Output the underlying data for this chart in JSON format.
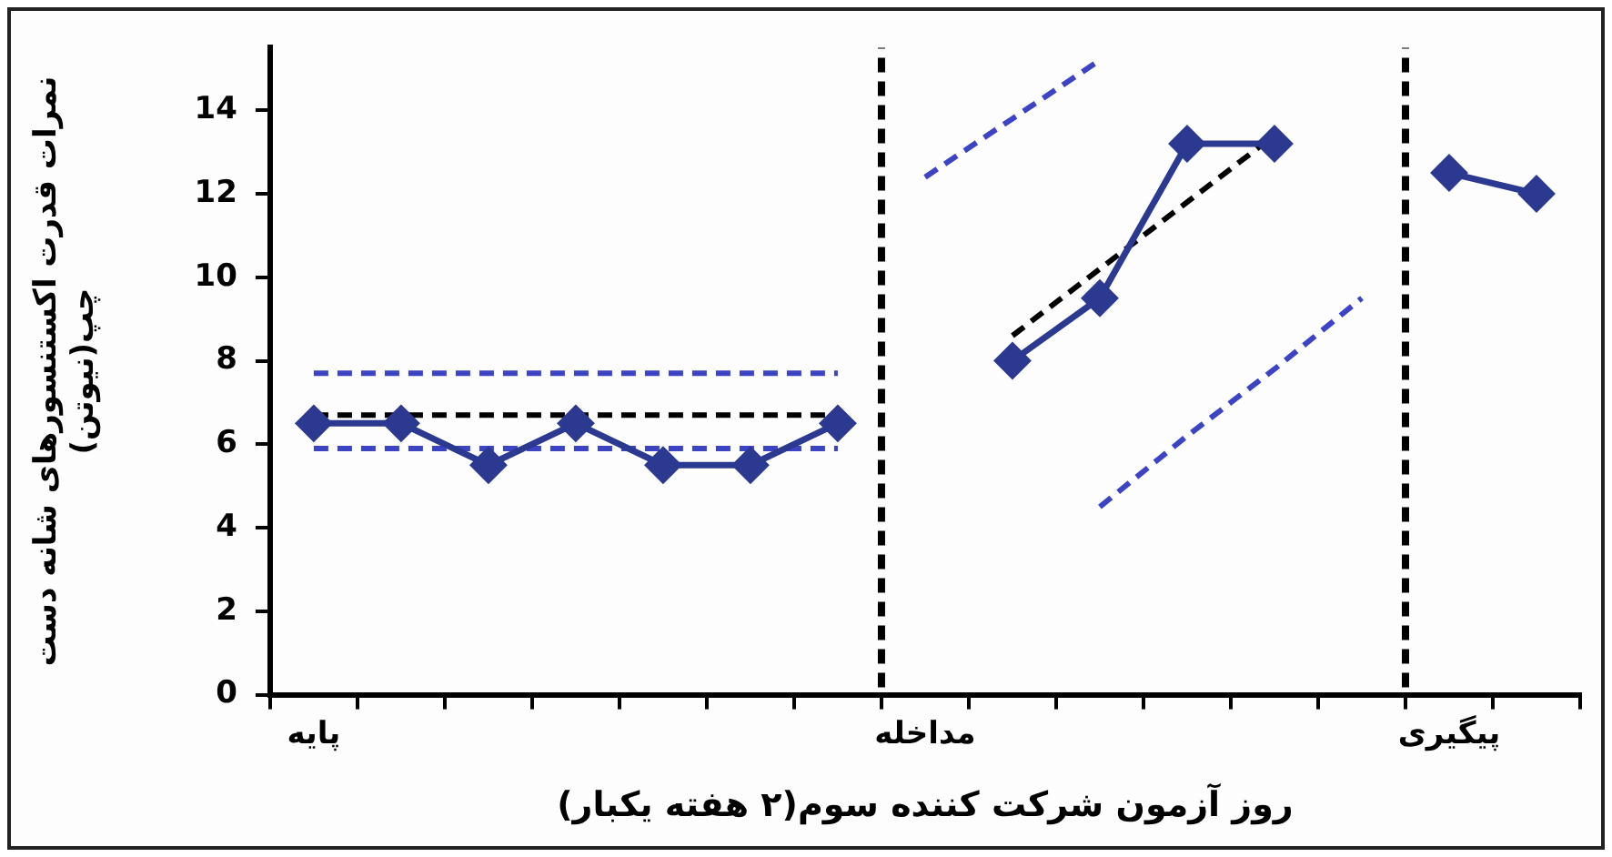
{
  "chart_data": {
    "type": "line",
    "xlabel": "روز آزمون شرکت کننده سوم(۲ هفته یکبار)",
    "ylabel": "نمرات قدرت اکستنسورهای شانه دست\nچپ(نیوتن)",
    "categories": [
      "پایه",
      null,
      null,
      null,
      null,
      null,
      null,
      "مداخله",
      null,
      null,
      null,
      null,
      null,
      "پیگیری",
      null
    ],
    "ylim": [
      0,
      15.5
    ],
    "yticks": [
      0,
      2,
      4,
      6,
      8,
      10,
      12,
      14
    ],
    "series": [
      {
        "color": "#2b3990",
        "marker": "diamond",
        "line_style": "solid",
        "values": [
          6.5,
          6.5,
          5.5,
          6.5,
          5.5,
          5.5,
          6.5,
          null,
          8,
          9.5,
          13.2,
          13.2,
          null,
          12.5,
          12
        ]
      },
      {
        "color": "#000000",
        "marker": "none",
        "line_style": "dashed",
        "values": [
          6.7,
          6.7,
          6.7,
          6.7,
          6.7,
          6.7,
          6.7,
          null,
          null,
          null,
          null,
          null,
          null,
          null,
          null
        ]
      },
      {
        "color": "#3d44c4",
        "marker": "none",
        "line_style": "dashed",
        "values": [
          7.7,
          7.7,
          7.7,
          7.7,
          7.7,
          7.7,
          7.7,
          null,
          null,
          null,
          null,
          null,
          null,
          null,
          null
        ]
      },
      {
        "color": "#3d44c4",
        "marker": "none",
        "line_style": "dashed",
        "values": [
          5.9,
          5.9,
          5.9,
          5.9,
          5.9,
          5.9,
          5.9,
          null,
          null,
          null,
          null,
          null,
          null,
          null,
          null
        ]
      },
      {
        "color": "#000000",
        "marker": "none",
        "line_style": "dashed",
        "values": [
          null,
          null,
          null,
          null,
          null,
          null,
          null,
          null,
          8.6,
          10.2,
          11.8,
          13.4,
          null,
          null,
          null
        ]
      },
      {
        "color": "#3d44c4",
        "marker": "none",
        "line_style": "dashed",
        "values": [
          null,
          null,
          null,
          null,
          null,
          null,
          null,
          12.4,
          13.8,
          15.2,
          null,
          null,
          null,
          null,
          null
        ]
      },
      {
        "color": "#3d44c4",
        "marker": "none",
        "line_style": "dashed",
        "values": [
          null,
          null,
          null,
          null,
          null,
          null,
          null,
          null,
          null,
          4.5,
          6.2,
          7.8,
          9.5,
          null,
          null
        ]
      }
    ],
    "ref_lines": [
      {
        "axis": "x",
        "value": "مداخله",
        "color": "#000000",
        "line_style": "dashed"
      },
      {
        "axis": "x",
        "value": "پیگیری",
        "color": "#000000",
        "line_style": "dashed"
      }
    ],
    "grid": false,
    "legend": false
  }
}
